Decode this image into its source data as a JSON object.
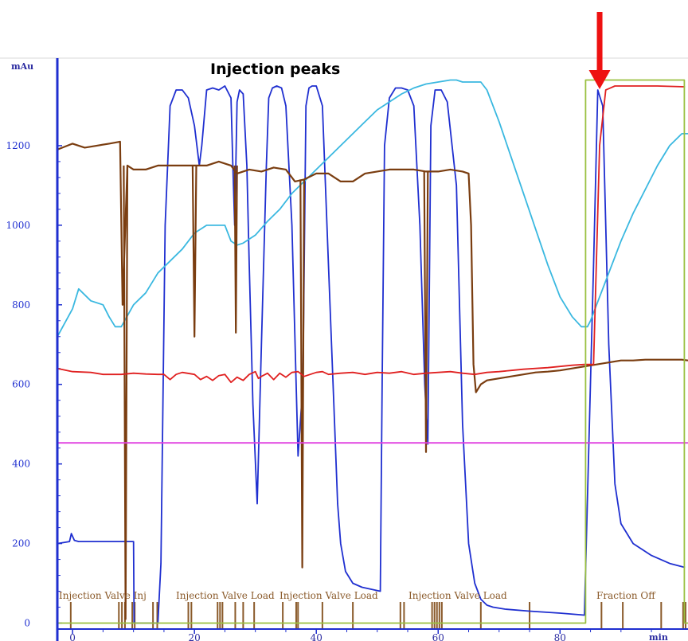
{
  "chart_data": {
    "type": "line",
    "title": "Injection peaks",
    "ylabel": "mAu",
    "xlabel": "min",
    "xlim": [
      -2.5,
      101
    ],
    "ylim": [
      -15,
      1420
    ],
    "x_ticks": [
      0,
      20,
      40,
      60,
      80
    ],
    "y_ticks": [
      0,
      200,
      400,
      600,
      800,
      1000,
      1200
    ],
    "grid": false,
    "colors": {
      "axis": "#1f2fd0",
      "uv_blue": "#1f2fd0",
      "cyan": "#3ab8e0",
      "brown": "#7a3d10",
      "red": "#e02020",
      "magenta": "#e040e0",
      "green": "#9ac040",
      "arrow": "#ee1111",
      "event_marks": "#8a5a2a"
    },
    "series": [
      {
        "color": "#1f2fd0",
        "x": [
          -2.5,
          -0.5,
          -0.2,
          0.3,
          1,
          3,
          6,
          8,
          10,
          10.1,
          11,
          14,
          14.5,
          15.2,
          16,
          17,
          18,
          19,
          20,
          20.8,
          21.2,
          22,
          23,
          24,
          25,
          26,
          26.3,
          26.6,
          27,
          27.4,
          28,
          28.6,
          29,
          29.6,
          30.3,
          31,
          31.8,
          32.2,
          32.8,
          33.5,
          34.3,
          35,
          36,
          37,
          37.8,
          38.3,
          38.8,
          39.3,
          40,
          41,
          42,
          43,
          43.5,
          44,
          44.8,
          46,
          47.5,
          49,
          50.5,
          50.8,
          51.2,
          52,
          53,
          54,
          55,
          56,
          57,
          57.8,
          58.3,
          58.8,
          59.5,
          60.5,
          61.5,
          63,
          64,
          65,
          66,
          67,
          68,
          69,
          71,
          75,
          80,
          84,
          85.5,
          86.2,
          87,
          88,
          89,
          90,
          92,
          95,
          98,
          100.5
        ],
        "values": [
          200,
          205,
          225,
          208,
          205,
          205,
          205,
          205,
          205,
          0,
          0,
          0,
          150,
          1000,
          1300,
          1340,
          1340,
          1320,
          1250,
          1150,
          1200,
          1340,
          1345,
          1340,
          1350,
          1320,
          1150,
          1000,
          1310,
          1340,
          1330,
          1150,
          900,
          550,
          300,
          700,
          1150,
          1320,
          1345,
          1350,
          1345,
          1300,
          1000,
          420,
          600,
          1300,
          1345,
          1350,
          1350,
          1300,
          900,
          500,
          300,
          200,
          130,
          100,
          90,
          85,
          80,
          600,
          1200,
          1320,
          1345,
          1345,
          1340,
          1300,
          1000,
          600,
          450,
          1250,
          1340,
          1340,
          1310,
          1100,
          500,
          200,
          100,
          60,
          45,
          40,
          35,
          30,
          25,
          20,
          900,
          1340,
          1300,
          700,
          350,
          250,
          200,
          170,
          150,
          140
        ]
      },
      {
        "color": "#3ab8e0",
        "x": [
          -2.5,
          0,
          1,
          3,
          5,
          6,
          7,
          8,
          10,
          12,
          14,
          16,
          18,
          20,
          22,
          24,
          25,
          26,
          27,
          28,
          30,
          32,
          34,
          36,
          38,
          40,
          42,
          44,
          46,
          48,
          50,
          52,
          54,
          56,
          58,
          60,
          62,
          63,
          64,
          66,
          67,
          68,
          70,
          72,
          74,
          76,
          78,
          80,
          82,
          83.5,
          84.5,
          85,
          86,
          88,
          90,
          92,
          94,
          96,
          98,
          100,
          101
        ],
        "values": [
          720,
          790,
          840,
          810,
          800,
          770,
          745,
          745,
          800,
          830,
          880,
          910,
          940,
          980,
          1000,
          1000,
          1000,
          960,
          950,
          955,
          975,
          1010,
          1040,
          1080,
          1110,
          1140,
          1170,
          1200,
          1230,
          1260,
          1290,
          1310,
          1330,
          1345,
          1355,
          1360,
          1365,
          1365,
          1360,
          1360,
          1360,
          1340,
          1260,
          1170,
          1080,
          990,
          900,
          820,
          770,
          745,
          745,
          760,
          800,
          880,
          960,
          1030,
          1090,
          1150,
          1200,
          1230,
          1230
        ]
      },
      {
        "color": "#7a3d10",
        "x": [
          -2.5,
          0,
          2,
          4,
          6,
          7.8,
          8.2,
          9,
          10,
          12,
          14,
          16,
          18,
          20,
          22,
          24,
          26,
          27,
          29,
          31,
          33,
          35,
          36.5,
          38,
          40,
          42,
          44,
          46,
          48,
          50,
          52,
          54,
          56,
          58,
          60,
          62,
          64,
          65,
          65.4,
          65.8,
          66.2,
          67,
          68,
          70,
          72,
          74,
          76,
          78,
          80,
          82,
          84,
          86,
          88,
          90,
          92,
          94,
          96,
          98,
          100,
          101
        ],
        "values": [
          1190,
          1205,
          1195,
          1200,
          1205,
          1210,
          800,
          1150,
          1140,
          1140,
          1150,
          1150,
          1150,
          1150,
          1150,
          1160,
          1150,
          1130,
          1140,
          1135,
          1145,
          1140,
          1110,
          1115,
          1130,
          1130,
          1110,
          1110,
          1130,
          1135,
          1140,
          1140,
          1140,
          1135,
          1135,
          1140,
          1135,
          1130,
          1000,
          650,
          580,
          600,
          610,
          615,
          620,
          625,
          630,
          632,
          635,
          640,
          645,
          650,
          655,
          660,
          660,
          662,
          662,
          662,
          662,
          660
        ]
      },
      {
        "color": "#7a3d10",
        "x": [
          8.4,
          8.7,
          9
        ],
        "values": [
          1150,
          10,
          1150
        ]
      },
      {
        "color": "#7a3d10",
        "x": [
          19.7,
          20,
          20.3
        ],
        "values": [
          1150,
          720,
          1150
        ]
      },
      {
        "color": "#7a3d10",
        "x": [
          26.6,
          26.8,
          27
        ],
        "values": [
          1150,
          730,
          1150
        ]
      },
      {
        "color": "#7a3d10",
        "x": [
          37.4,
          37.7,
          38
        ],
        "values": [
          1115,
          140,
          1115
        ]
      },
      {
        "color": "#7a3d10",
        "x": [
          57.7,
          58,
          58.3
        ],
        "values": [
          1135,
          430,
          1135
        ]
      },
      {
        "color": "#e02020",
        "x": [
          -2.5,
          0,
          3,
          5,
          8,
          10,
          12,
          14,
          15,
          16,
          17,
          18,
          20,
          21,
          22,
          23,
          24,
          25,
          26,
          27,
          28,
          29,
          30,
          30.5,
          31,
          32,
          33,
          34,
          35,
          36,
          37,
          38,
          39,
          40,
          41,
          42,
          44,
          46,
          48,
          50,
          52,
          54,
          56,
          58,
          60,
          62,
          64,
          66,
          68,
          70,
          72,
          74,
          76,
          78,
          80,
          82,
          84,
          85.5,
          86.5,
          87.5,
          89,
          92,
          96,
          100.5
        ],
        "values": [
          640,
          632,
          630,
          625,
          625,
          628,
          626,
          625,
          625,
          612,
          625,
          630,
          625,
          612,
          620,
          610,
          622,
          625,
          605,
          618,
          610,
          625,
          632,
          615,
          620,
          628,
          612,
          628,
          618,
          630,
          632,
          620,
          625,
          630,
          632,
          625,
          628,
          630,
          625,
          630,
          628,
          632,
          625,
          628,
          630,
          632,
          628,
          625,
          630,
          632,
          635,
          638,
          640,
          642,
          645,
          648,
          650,
          650,
          1200,
          1340,
          1350,
          1350,
          1350,
          1348
        ]
      },
      {
        "color": "#e040e0",
        "x": [
          -2.5,
          101
        ],
        "values": [
          453,
          453
        ]
      },
      {
        "color": "#9ac040",
        "x": [
          -2.5,
          84.2,
          84.2,
          100.4,
          100.4,
          101
        ],
        "values": [
          0,
          0,
          1365,
          1365,
          0,
          0
        ]
      }
    ],
    "events": [
      {
        "label": "Injection Valve Inj"
      },
      {
        "label": "Injection Valve Load"
      },
      {
        "label": "Injection Valve Load"
      },
      {
        "label": "Injection Valve Load"
      },
      {
        "label": "Fraction Off"
      }
    ],
    "event_mark_x": [
      -0.3,
      7.6,
      8.1,
      8.6,
      9.8,
      10.2,
      13.2,
      13.9,
      19,
      19.5,
      23.8,
      24.2,
      24.6,
      26.7,
      28,
      29.8,
      34.5,
      36.7,
      37,
      41,
      46,
      53.8,
      54.4,
      59,
      59.4,
      59.8,
      60.2,
      60.6,
      67,
      75,
      86.8,
      90.3,
      96.6,
      100.2,
      100.6
    ],
    "arrow_x": 86.5
  }
}
